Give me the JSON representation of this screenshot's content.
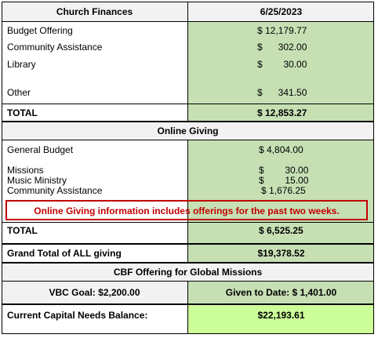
{
  "header": {
    "title": "Church Finances",
    "date": "6/25/2023"
  },
  "finances": {
    "budget_offering_label": "Budget Offering",
    "budget_offering_value": "$ 12,179.77",
    "community_label": "Community Assistance",
    "community_value": "$      302.00",
    "library_label": "Library",
    "library_value": "$        30.00",
    "other_label": "Other",
    "other_value": "$      341.50",
    "total_label": "TOTAL",
    "total_value": "$ 12,853.27"
  },
  "online": {
    "section_title": "Online Giving",
    "general_label": "General Budget",
    "general_value": "$ 4,804.00",
    "missions_label": "Missions",
    "missions_value": "$        30.00",
    "music_label": "Music Ministry",
    "music_value": "$        15.00",
    "community_label": "Community Assistance",
    "community_value": "$ 1,676.25",
    "note": "Online Giving information includes offerings for the past two weeks.",
    "total_label": "TOTAL",
    "total_value": "$ 6,525.25"
  },
  "grand_total": {
    "label": "Grand Total of ALL giving",
    "value": "$19,378.52"
  },
  "cbf": {
    "title": "CBF Offering for Global Missions",
    "goal": "VBC Goal: $2,200.00",
    "given": "Given to Date: $ 1,401.00"
  },
  "capital": {
    "label": "Current Capital Needs Balance:",
    "value": "$22,193.61"
  },
  "colors": {
    "green": "#c6e0b4",
    "lime": "#ccff99",
    "grey": "#f2f2f2",
    "note_red": "#c00000"
  }
}
